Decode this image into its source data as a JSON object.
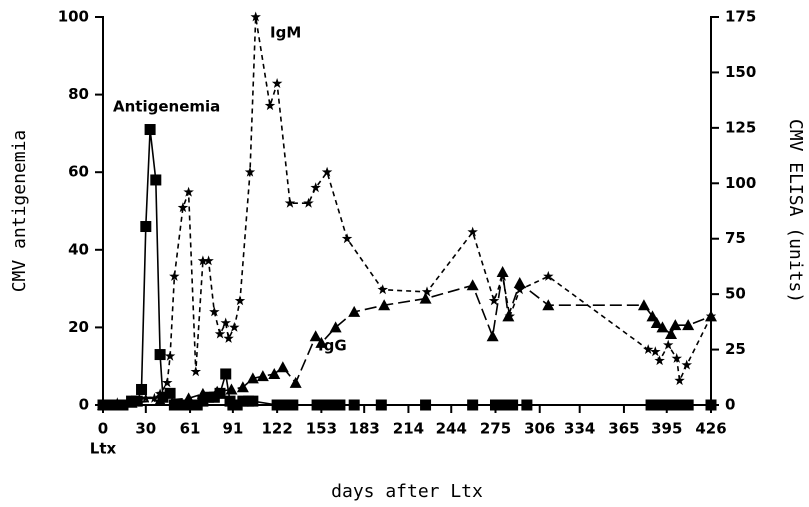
{
  "chart_data": {
    "type": "line",
    "xlabel": "days after Ltx",
    "ylabel": "CMV antigenemia",
    "y2label": "CMV ELISA (units)",
    "xlim": [
      0,
      426
    ],
    "xticks": [
      0,
      30,
      61,
      91,
      122,
      153,
      183,
      214,
      244,
      275,
      306,
      334,
      365,
      395,
      426
    ],
    "ylim": [
      0,
      100
    ],
    "yticks": [
      0,
      20,
      40,
      60,
      80,
      100
    ],
    "y2lim": [
      0,
      175
    ],
    "y2ticks": [
      0,
      25,
      50,
      75,
      100,
      125,
      150,
      175
    ],
    "annotations": [
      "Ltx"
    ],
    "series": [
      {
        "name": "Antigenemia",
        "color": "#000000",
        "marker": "square",
        "linestyle": "solid",
        "x": [
          0,
          4,
          7,
          11,
          14,
          20,
          24,
          27,
          30,
          33,
          37,
          40,
          42,
          47,
          50,
          54,
          58,
          61,
          66,
          70,
          74,
          78,
          82,
          86,
          89,
          91,
          94,
          98,
          102,
          105,
          122,
          126,
          133,
          150,
          155,
          160,
          166,
          176,
          195,
          226,
          259,
          275,
          280,
          287,
          297,
          384,
          389,
          395,
          400,
          405,
          410,
          426
        ],
        "values": [
          0,
          0,
          0,
          0,
          0,
          1,
          1,
          4,
          46,
          71,
          58,
          13,
          2,
          3,
          0,
          0,
          0,
          0,
          0,
          1,
          2,
          2,
          3,
          8,
          1,
          0,
          0,
          1,
          1,
          1,
          0,
          0,
          0,
          0,
          0,
          0,
          0,
          0,
          0,
          0,
          0,
          0,
          0,
          0,
          0,
          0,
          0,
          0,
          0,
          0,
          0,
          0
        ]
      },
      {
        "name": "IgM",
        "color": "#000000",
        "marker": "star",
        "linestyle": "dashed",
        "axis": "y2",
        "x": [
          0,
          10,
          20,
          30,
          36,
          40,
          45,
          47,
          50,
          56,
          60,
          65,
          70,
          74,
          78,
          82,
          86,
          88,
          92,
          96,
          103,
          107,
          117,
          122,
          131,
          144,
          149,
          157,
          171,
          196,
          227,
          259,
          274,
          280,
          285,
          292,
          312,
          382,
          387,
          390,
          396,
          402,
          404,
          409,
          426
        ],
        "values": [
          0,
          1,
          2,
          3,
          3,
          5,
          10,
          22,
          58,
          89,
          96,
          15,
          65,
          65,
          42,
          32,
          37,
          30,
          35,
          47,
          105,
          175,
          135,
          145,
          91,
          91,
          98,
          105,
          75,
          52,
          51,
          78,
          47,
          58,
          40,
          52,
          58,
          25,
          24,
          20,
          27,
          21,
          11,
          18,
          40
        ]
      },
      {
        "name": "IgG",
        "color": "#000000",
        "marker": "triangle",
        "linestyle": "longdash",
        "axis": "y2",
        "x": [
          0,
          20,
          40,
          60,
          70,
          80,
          90,
          98,
          105,
          112,
          120,
          126,
          135,
          149,
          153,
          163,
          176,
          197,
          226,
          259,
          273,
          280,
          284,
          292,
          312,
          379,
          385,
          388,
          392,
          398,
          401,
          410,
          426
        ],
        "values": [
          0,
          1,
          2,
          3,
          5,
          6,
          7,
          8,
          12,
          13,
          14,
          17,
          10,
          31,
          28,
          35,
          42,
          45,
          48,
          54,
          31,
          60,
          40,
          55,
          45,
          45,
          40,
          37,
          35,
          32,
          36,
          36,
          40
        ]
      }
    ]
  }
}
